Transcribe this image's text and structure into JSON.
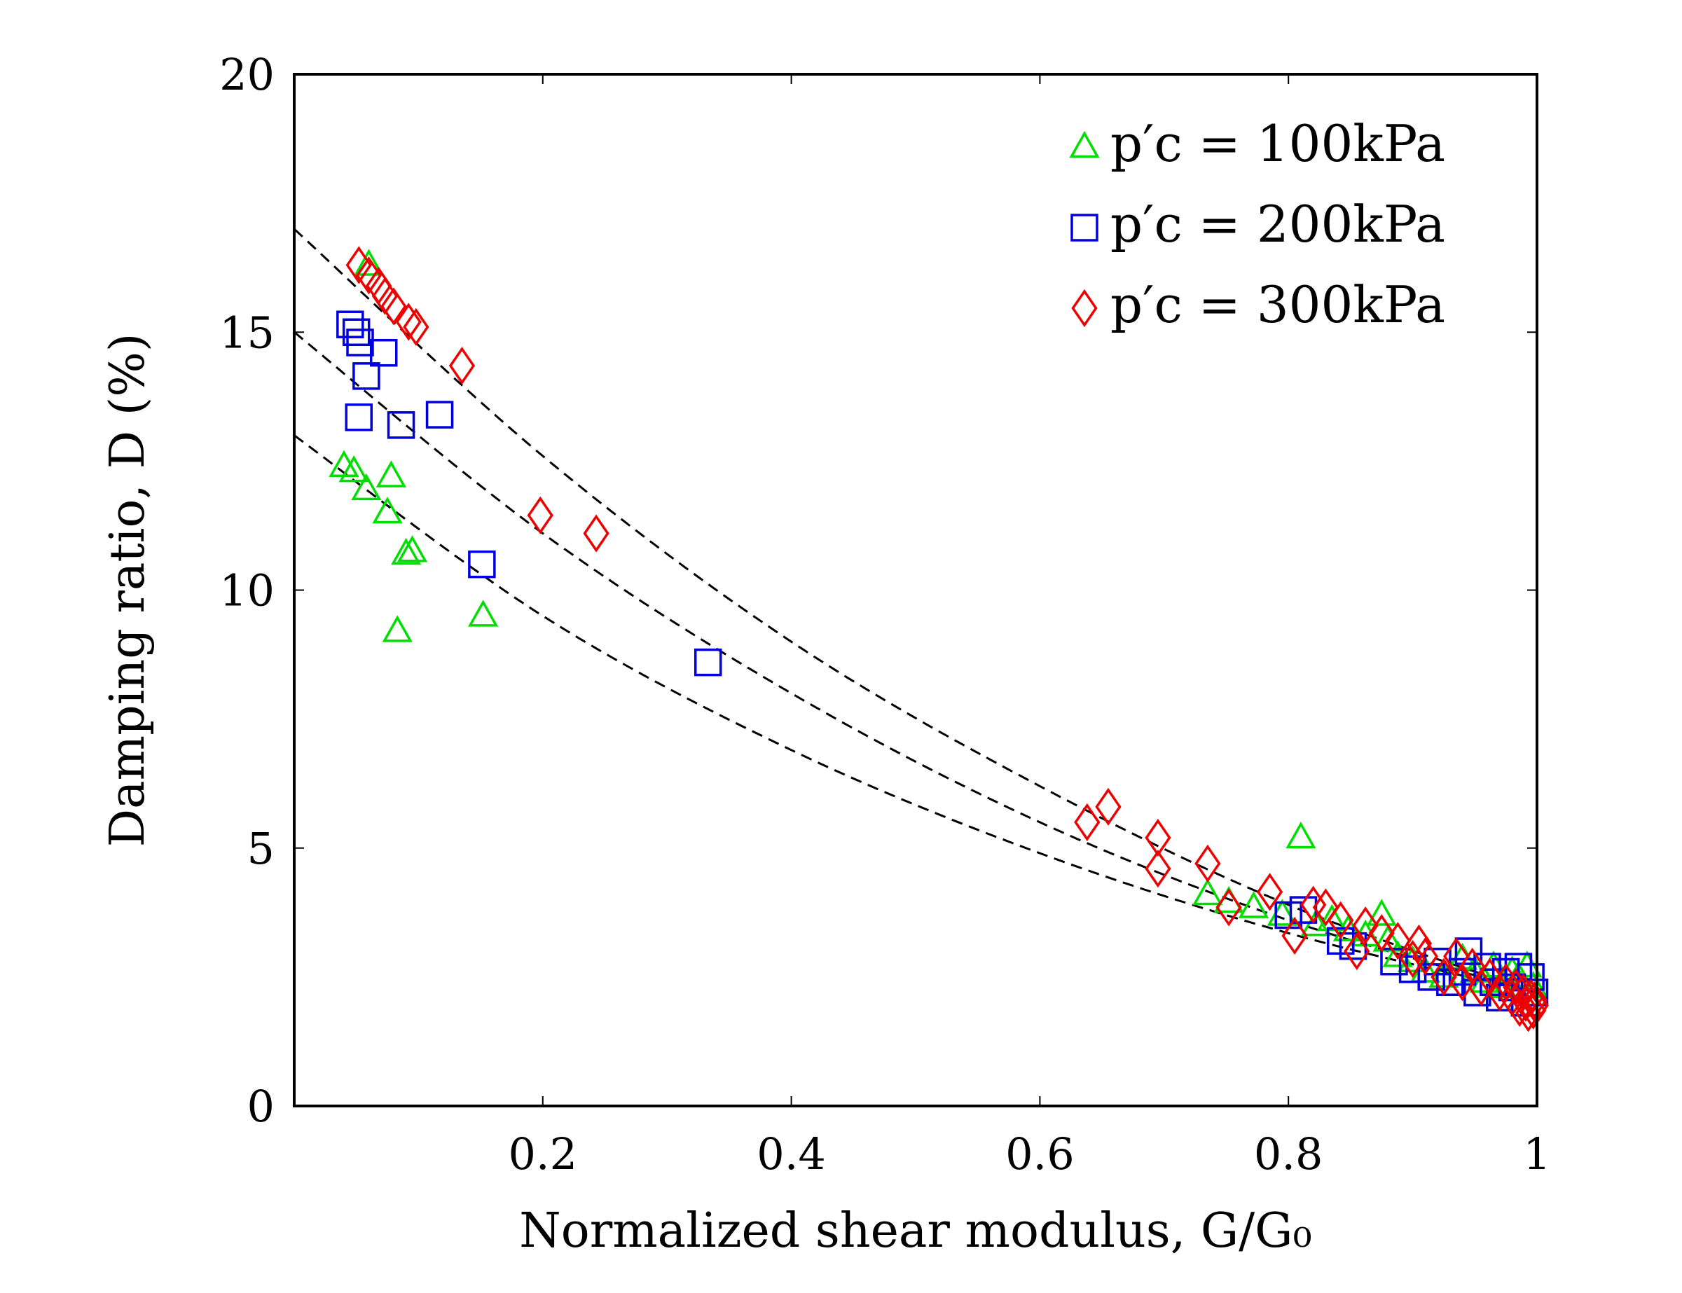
{
  "chart_data": {
    "type": "scatter",
    "title": "",
    "xlabel": "Normalized shear modulus, G/G₀",
    "ylabel": "Damping ratio, D (%)",
    "xlim": [
      0,
      1
    ],
    "ylim": [
      0,
      20
    ],
    "xticks": [
      0.2,
      0.4,
      0.6,
      0.8,
      1
    ],
    "xtick_labels": [
      "0.2",
      "0.4",
      "0.6",
      "0.8",
      "1"
    ],
    "yticks": [
      0,
      5,
      10,
      15,
      20
    ],
    "ytick_labels": [
      "0",
      "5",
      "10",
      "15",
      "20"
    ],
    "grid": false,
    "legend_position": "top-right",
    "series": [
      {
        "name": "p′c = 100kPa",
        "marker": "triangle",
        "color": "#00dd00",
        "points": [
          [
            0.04,
            12.4
          ],
          [
            0.048,
            12.3
          ],
          [
            0.058,
            11.95
          ],
          [
            0.06,
            16.3
          ],
          [
            0.075,
            11.5
          ],
          [
            0.078,
            12.2
          ],
          [
            0.083,
            9.2
          ],
          [
            0.09,
            10.7
          ],
          [
            0.095,
            10.75
          ],
          [
            0.152,
            9.5
          ],
          [
            0.735,
            4.1
          ],
          [
            0.752,
            3.95
          ],
          [
            0.772,
            3.85
          ],
          [
            0.795,
            3.7
          ],
          [
            0.81,
            5.2
          ],
          [
            0.822,
            3.5
          ],
          [
            0.835,
            3.6
          ],
          [
            0.848,
            3.4
          ],
          [
            0.862,
            3.3
          ],
          [
            0.875,
            3.7
          ],
          [
            0.88,
            3.2
          ],
          [
            0.888,
            2.9
          ],
          [
            0.9,
            2.8
          ],
          [
            0.91,
            2.6
          ],
          [
            0.925,
            2.5
          ],
          [
            0.94,
            2.85
          ],
          [
            0.95,
            2.6
          ],
          [
            0.958,
            2.4
          ],
          [
            0.965,
            2.7
          ],
          [
            0.972,
            2.3
          ],
          [
            0.98,
            2.6
          ],
          [
            0.985,
            2.5
          ],
          [
            0.992,
            2.7
          ],
          [
            0.997,
            2.3
          ]
        ]
      },
      {
        "name": "p′c = 200kPa",
        "marker": "square",
        "color": "#0000dd",
        "points": [
          [
            0.045,
            15.15
          ],
          [
            0.05,
            15.0
          ],
          [
            0.053,
            14.8
          ],
          [
            0.058,
            14.15
          ],
          [
            0.052,
            13.35
          ],
          [
            0.072,
            14.6
          ],
          [
            0.086,
            13.2
          ],
          [
            0.117,
            13.4
          ],
          [
            0.151,
            10.5
          ],
          [
            0.333,
            8.6
          ],
          [
            0.8,
            3.7
          ],
          [
            0.812,
            3.8
          ],
          [
            0.842,
            3.2
          ],
          [
            0.852,
            3.1
          ],
          [
            0.885,
            2.8
          ],
          [
            0.9,
            2.65
          ],
          [
            0.915,
            2.5
          ],
          [
            0.92,
            2.8
          ],
          [
            0.93,
            2.4
          ],
          [
            0.94,
            2.6
          ],
          [
            0.945,
            3.0
          ],
          [
            0.952,
            2.2
          ],
          [
            0.96,
            2.7
          ],
          [
            0.965,
            2.4
          ],
          [
            0.97,
            2.1
          ],
          [
            0.975,
            2.6
          ],
          [
            0.98,
            2.3
          ],
          [
            0.985,
            2.7
          ],
          [
            0.99,
            2.0
          ],
          [
            0.995,
            2.5
          ],
          [
            0.998,
            2.2
          ]
        ]
      },
      {
        "name": "p′c = 300kPa",
        "marker": "diamond",
        "color": "#ee0000",
        "points": [
          [
            0.052,
            16.3
          ],
          [
            0.06,
            16.1
          ],
          [
            0.068,
            15.9
          ],
          [
            0.073,
            15.7
          ],
          [
            0.08,
            15.5
          ],
          [
            0.092,
            15.2
          ],
          [
            0.098,
            15.1
          ],
          [
            0.135,
            14.35
          ],
          [
            0.198,
            11.45
          ],
          [
            0.243,
            11.1
          ],
          [
            0.638,
            5.5
          ],
          [
            0.655,
            5.8
          ],
          [
            0.695,
            5.2
          ],
          [
            0.695,
            4.6
          ],
          [
            0.735,
            4.7
          ],
          [
            0.752,
            3.85
          ],
          [
            0.785,
            4.15
          ],
          [
            0.805,
            3.3
          ],
          [
            0.82,
            3.9
          ],
          [
            0.83,
            3.85
          ],
          [
            0.842,
            3.6
          ],
          [
            0.855,
            3.0
          ],
          [
            0.862,
            3.5
          ],
          [
            0.875,
            3.35
          ],
          [
            0.888,
            3.2
          ],
          [
            0.9,
            2.85
          ],
          [
            0.905,
            3.15
          ],
          [
            0.91,
            2.9
          ],
          [
            0.925,
            2.5
          ],
          [
            0.935,
            2.9
          ],
          [
            0.94,
            2.4
          ],
          [
            0.948,
            2.7
          ],
          [
            0.955,
            2.3
          ],
          [
            0.962,
            2.5
          ],
          [
            0.97,
            2.2
          ],
          [
            0.975,
            2.4
          ],
          [
            0.98,
            2.1
          ],
          [
            0.983,
            2.3
          ],
          [
            0.986,
            1.9
          ],
          [
            0.989,
            2.2
          ],
          [
            0.991,
            2.0
          ],
          [
            0.993,
            1.8
          ],
          [
            0.995,
            2.1
          ],
          [
            0.997,
            1.85
          ],
          [
            0.998,
            2.05
          ],
          [
            0.999,
            1.95
          ]
        ]
      }
    ],
    "fit_curves": [
      {
        "name": "fit-300kPa",
        "style": "dashed",
        "color": "#000000",
        "x": [
          0,
          0.2,
          0.4,
          0.6,
          0.8,
          1.0
        ],
        "y": [
          17.0,
          12.6,
          9.0,
          6.2,
          3.9,
          2.2
        ]
      },
      {
        "name": "fit-200kPa",
        "style": "dashed",
        "color": "#000000",
        "x": [
          0,
          0.2,
          0.4,
          0.6,
          0.8,
          1.0
        ],
        "y": [
          15.0,
          11.1,
          8.0,
          5.5,
          3.6,
          2.2
        ]
      },
      {
        "name": "fit-100kPa",
        "style": "dashed",
        "color": "#000000",
        "x": [
          0,
          0.2,
          0.4,
          0.6,
          0.8,
          1.0
        ],
        "y": [
          13.0,
          9.5,
          6.9,
          4.9,
          3.35,
          2.2
        ]
      }
    ]
  }
}
